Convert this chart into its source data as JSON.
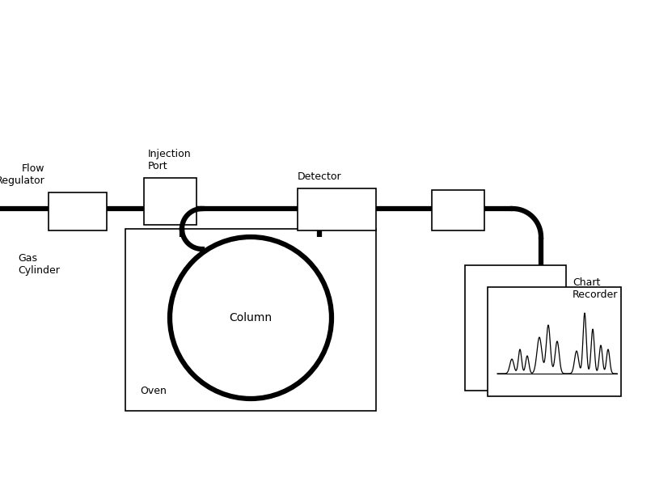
{
  "background_color": "#ffffff",
  "line_color": "#000000",
  "box_color": "#ffffff",
  "thick_lw": 4.5,
  "thin_lw": 1.2,
  "labels": {
    "flow_regulator": "Flow\nRegulator",
    "injection_port": "Injection\nPort",
    "detector": "Detector",
    "gas_cylinder": "Gas\nCylinder",
    "column": "Column",
    "oven": "Oven",
    "chart_recorder": "Chart\nRecorder"
  },
  "font_size": 9,
  "font_family": "DejaVu Sans"
}
